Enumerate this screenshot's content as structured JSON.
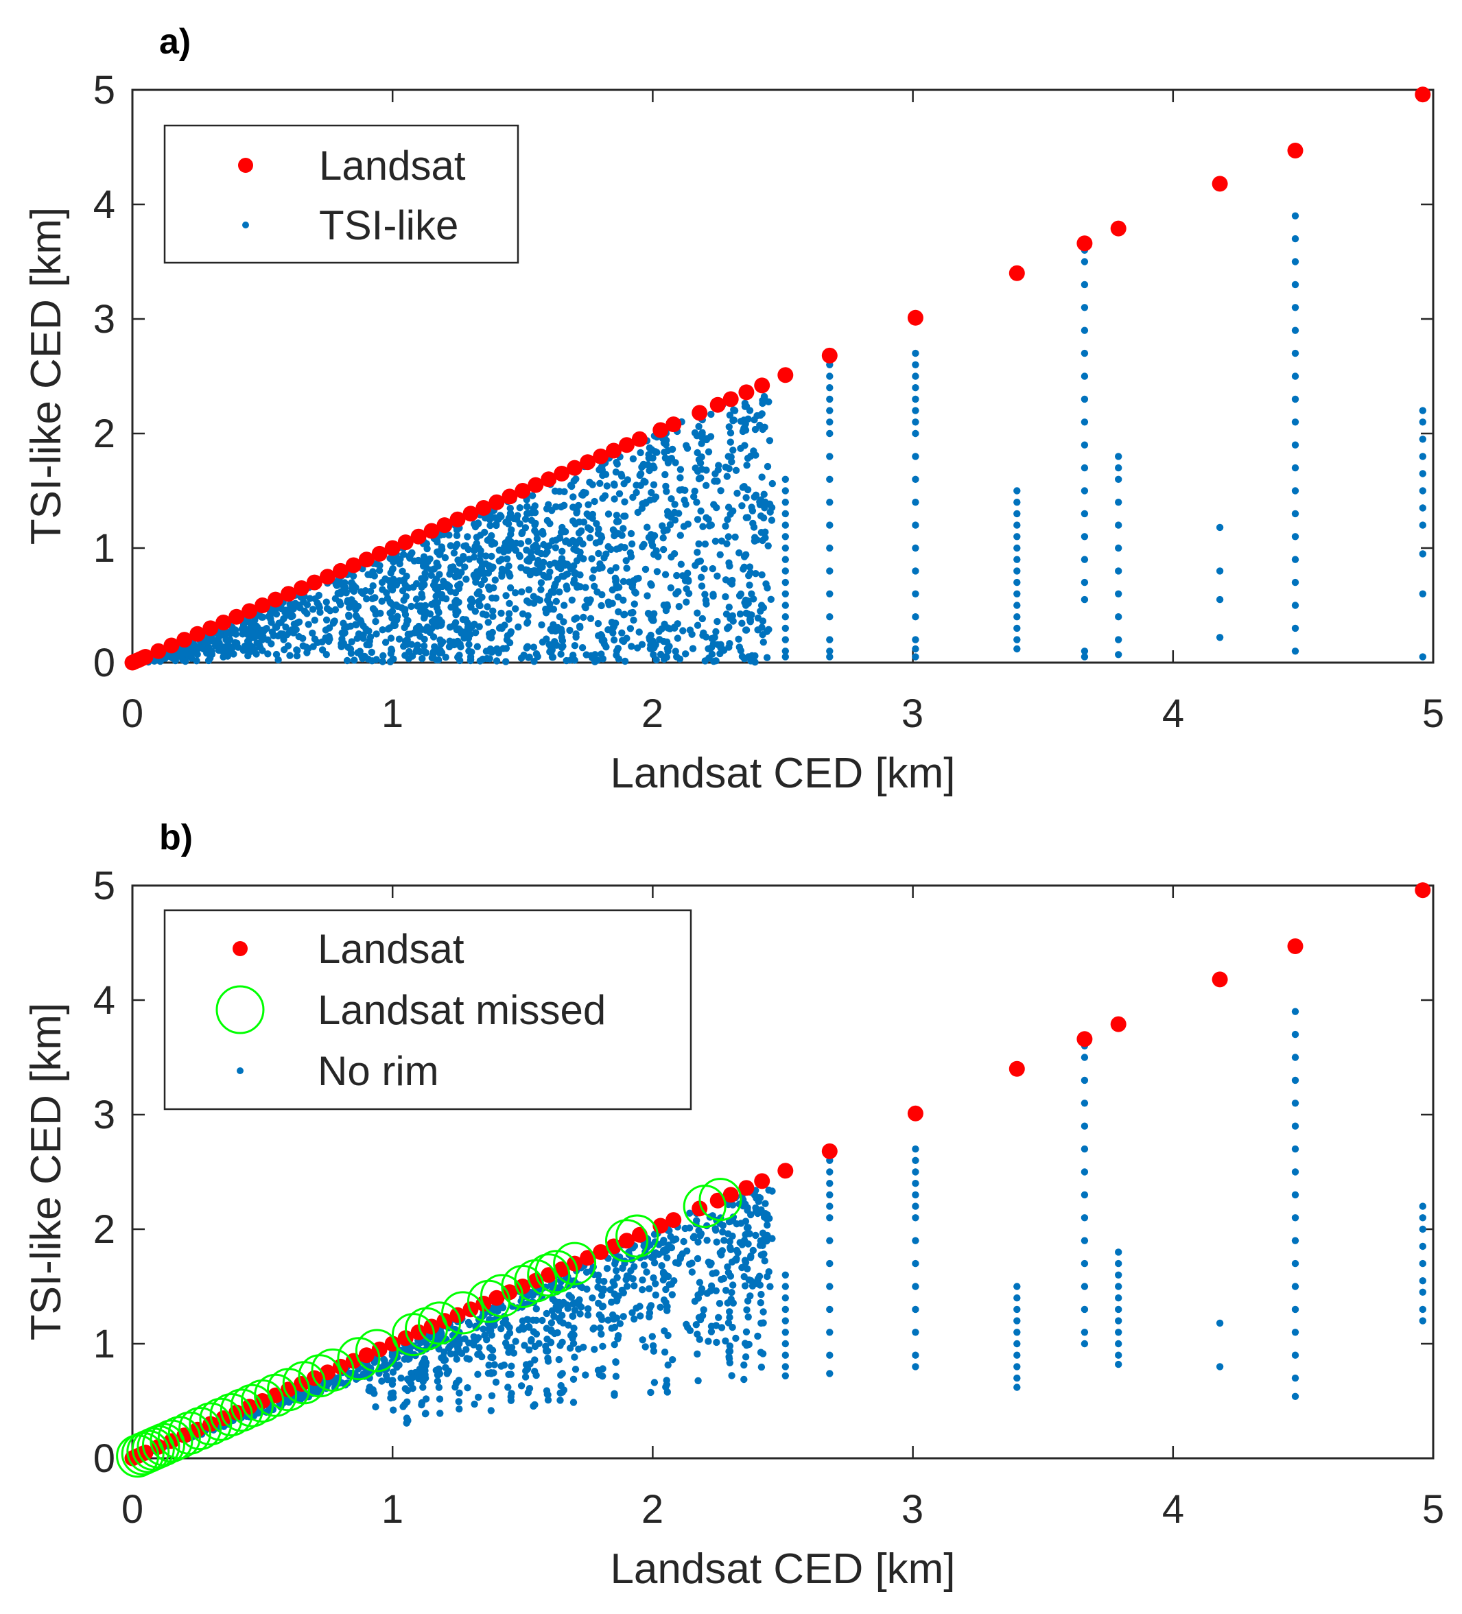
{
  "colors": {
    "landsat": "#ff0000",
    "tsi": "#0072bd",
    "missed": "#00ff00",
    "axis": "#262626"
  },
  "chart_data": [
    {
      "type": "scatter",
      "panel_label": "a)",
      "xlabel": "Landsat CED [km]",
      "ylabel": "TSI-like CED [km]",
      "xlim": [
        0,
        5
      ],
      "ylim": [
        0,
        5
      ],
      "xticks": [
        "0",
        "1",
        "2",
        "3",
        "4",
        "5"
      ],
      "yticks": [
        "0",
        "1",
        "2",
        "3",
        "4",
        "5"
      ],
      "grid": false,
      "legend_position": "top-left",
      "legend": [
        {
          "label": "Landsat",
          "marker": "filled-dot",
          "color": "#ff0000"
        },
        {
          "label": "TSI-like",
          "marker": "small-dot",
          "color": "#0072bd"
        }
      ],
      "series": [
        {
          "name": "Landsat",
          "x": [
            0.05,
            0.1,
            0.15,
            0.2,
            0.25,
            0.3,
            0.35,
            0.4,
            0.45,
            0.5,
            0.55,
            0.6,
            0.65,
            0.7,
            0.75,
            0.8,
            0.85,
            0.9,
            0.95,
            1.0,
            1.05,
            1.1,
            1.15,
            1.2,
            1.25,
            1.3,
            1.35,
            1.4,
            1.45,
            1.5,
            1.55,
            1.6,
            1.65,
            1.7,
            1.75,
            1.8,
            1.85,
            1.9,
            1.95,
            2.03,
            2.08,
            2.18,
            2.25,
            2.3,
            2.36,
            2.42,
            2.51,
            2.68,
            3.01,
            3.4,
            3.66,
            3.79,
            4.18,
            4.47,
            4.96
          ],
          "y": [
            0.05,
            0.1,
            0.15,
            0.2,
            0.25,
            0.3,
            0.35,
            0.4,
            0.45,
            0.5,
            0.55,
            0.6,
            0.65,
            0.7,
            0.75,
            0.8,
            0.85,
            0.9,
            0.95,
            1.0,
            1.05,
            1.1,
            1.15,
            1.2,
            1.25,
            1.3,
            1.35,
            1.4,
            1.45,
            1.5,
            1.55,
            1.6,
            1.65,
            1.7,
            1.75,
            1.8,
            1.85,
            1.9,
            1.95,
            2.03,
            2.08,
            2.18,
            2.25,
            2.3,
            2.36,
            2.42,
            2.51,
            2.68,
            3.01,
            3.4,
            3.66,
            3.79,
            4.18,
            4.47,
            4.96
          ]
        },
        {
          "name": "TSI-like",
          "columns": [
            {
              "x": 2.51,
              "y": [
                0.05,
                0.1,
                0.2,
                0.3,
                0.4,
                0.5,
                0.6,
                0.7,
                0.8,
                0.9,
                1.0,
                1.1,
                1.2,
                1.3,
                1.4,
                1.5,
                1.6
              ]
            },
            {
              "x": 2.68,
              "y": [
                0.05,
                0.1,
                0.2,
                0.4,
                0.6,
                0.8,
                1.0,
                1.2,
                1.4,
                1.6,
                1.8,
                2.0,
                2.1,
                2.2,
                2.3,
                2.4,
                2.5,
                2.6,
                2.65
              ]
            },
            {
              "x": 3.01,
              "y": [
                0.05,
                0.12,
                0.2,
                0.4,
                0.6,
                0.8,
                1.0,
                1.2,
                1.4,
                1.6,
                1.8,
                2.0,
                2.1,
                2.2,
                2.3,
                2.4,
                2.5,
                2.6,
                2.7
              ]
            },
            {
              "x": 3.4,
              "y": [
                0.12,
                0.2,
                0.3,
                0.4,
                0.5,
                0.6,
                0.7,
                0.8,
                0.9,
                1.0,
                1.1,
                1.2,
                1.3,
                1.4,
                1.5
              ]
            },
            {
              "x": 3.66,
              "y": [
                0.05,
                0.1,
                0.55,
                0.7,
                0.9,
                1.1,
                1.3,
                1.5,
                1.7,
                1.9,
                2.1,
                2.3,
                2.5,
                2.7,
                2.9,
                3.1,
                3.3,
                3.5,
                3.6,
                3.65
              ]
            },
            {
              "x": 3.79,
              "y": [
                0.07,
                0.2,
                0.4,
                0.6,
                0.8,
                1.0,
                1.2,
                1.4,
                1.6,
                1.7,
                1.8
              ]
            },
            {
              "x": 4.18,
              "y": [
                0.22,
                0.55,
                0.8,
                1.18
              ]
            },
            {
              "x": 4.47,
              "y": [
                0.1,
                0.3,
                0.5,
                0.7,
                0.9,
                1.1,
                1.3,
                1.5,
                1.7,
                1.9,
                2.1,
                2.3,
                2.5,
                2.7,
                2.9,
                3.1,
                3.3,
                3.5,
                3.7,
                3.9
              ]
            },
            {
              "x": 4.96,
              "y": [
                0.05,
                0.6,
                0.95,
                1.2,
                1.35,
                1.5,
                1.65,
                1.8,
                1.95,
                2.1,
                2.2
              ]
            }
          ]
        }
      ]
    },
    {
      "type": "scatter",
      "panel_label": "b)",
      "xlabel": "Landsat CED [km]",
      "ylabel": "TSI-like CED [km]",
      "xlim": [
        0,
        5
      ],
      "ylim": [
        0,
        5
      ],
      "xticks": [
        "0",
        "1",
        "2",
        "3",
        "4",
        "5"
      ],
      "yticks": [
        "0",
        "1",
        "2",
        "3",
        "4",
        "5"
      ],
      "grid": false,
      "legend_position": "top-left",
      "legend": [
        {
          "label": "Landsat",
          "marker": "filled-dot",
          "color": "#ff0000"
        },
        {
          "label": "Landsat missed",
          "marker": "open-circle",
          "color": "#00ff00"
        },
        {
          "label": "No rim",
          "marker": "small-dot",
          "color": "#0072bd"
        }
      ],
      "series": [
        {
          "name": "Landsat",
          "x": [
            0.05,
            0.1,
            0.15,
            0.2,
            0.25,
            0.3,
            0.35,
            0.4,
            0.45,
            0.5,
            0.55,
            0.6,
            0.65,
            0.7,
            0.75,
            0.8,
            0.85,
            0.9,
            0.95,
            1.0,
            1.05,
            1.1,
            1.15,
            1.2,
            1.25,
            1.3,
            1.35,
            1.4,
            1.45,
            1.5,
            1.55,
            1.6,
            1.65,
            1.7,
            1.75,
            1.8,
            1.85,
            1.9,
            1.95,
            2.03,
            2.08,
            2.18,
            2.25,
            2.3,
            2.36,
            2.42,
            2.51,
            2.68,
            3.01,
            3.4,
            3.66,
            3.79,
            4.18,
            4.47,
            4.96
          ],
          "y": [
            0.05,
            0.1,
            0.15,
            0.2,
            0.25,
            0.3,
            0.35,
            0.4,
            0.45,
            0.5,
            0.55,
            0.6,
            0.65,
            0.7,
            0.75,
            0.8,
            0.85,
            0.9,
            0.95,
            1.0,
            1.05,
            1.1,
            1.15,
            1.2,
            1.25,
            1.3,
            1.35,
            1.4,
            1.45,
            1.5,
            1.55,
            1.6,
            1.65,
            1.7,
            1.75,
            1.8,
            1.85,
            1.9,
            1.95,
            2.03,
            2.08,
            2.18,
            2.25,
            2.3,
            2.36,
            2.42,
            2.51,
            2.68,
            3.01,
            3.4,
            3.66,
            3.79,
            4.18,
            4.47,
            4.96
          ]
        },
        {
          "name": "Landsat missed",
          "x": [
            0.02,
            0.04,
            0.06,
            0.08,
            0.1,
            0.12,
            0.15,
            0.18,
            0.22,
            0.26,
            0.3,
            0.34,
            0.38,
            0.42,
            0.46,
            0.5,
            0.55,
            0.6,
            0.66,
            0.72,
            0.77,
            0.87,
            0.94,
            1.08,
            1.13,
            1.18,
            1.27,
            1.37,
            1.42,
            1.5,
            1.55,
            1.6,
            1.63,
            1.7,
            1.9,
            1.94,
            2.2,
            2.26
          ],
          "y": [
            0.02,
            0.04,
            0.06,
            0.08,
            0.1,
            0.12,
            0.15,
            0.18,
            0.22,
            0.26,
            0.3,
            0.34,
            0.38,
            0.42,
            0.46,
            0.5,
            0.55,
            0.6,
            0.66,
            0.72,
            0.77,
            0.87,
            0.94,
            1.08,
            1.13,
            1.18,
            1.27,
            1.37,
            1.42,
            1.5,
            1.55,
            1.6,
            1.63,
            1.7,
            1.9,
            1.94,
            2.2,
            2.26
          ]
        },
        {
          "name": "No rim",
          "columns": [
            {
              "x": 2.51,
              "y": [
                0.72,
                0.8,
                0.9,
                1.0,
                1.1,
                1.2,
                1.3,
                1.4,
                1.5,
                1.6
              ]
            },
            {
              "x": 2.68,
              "y": [
                0.74,
                0.9,
                1.1,
                1.3,
                1.5,
                1.7,
                1.9,
                2.1,
                2.2,
                2.3,
                2.4,
                2.5,
                2.6
              ]
            },
            {
              "x": 3.01,
              "y": [
                0.8,
                0.9,
                1.1,
                1.3,
                1.5,
                1.7,
                1.9,
                2.1,
                2.2,
                2.3,
                2.4,
                2.5,
                2.6,
                2.7
              ]
            },
            {
              "x": 3.4,
              "y": [
                0.62,
                0.7,
                0.8,
                0.9,
                1.0,
                1.1,
                1.2,
                1.3,
                1.4,
                1.5
              ]
            },
            {
              "x": 3.66,
              "y": [
                1.0,
                1.1,
                1.3,
                1.5,
                1.7,
                1.9,
                2.1,
                2.3,
                2.5,
                2.7,
                2.9,
                3.1,
                3.3,
                3.5,
                3.6,
                3.65
              ]
            },
            {
              "x": 3.79,
              "y": [
                0.82,
                0.9,
                1.0,
                1.1,
                1.2,
                1.3,
                1.4,
                1.5,
                1.6,
                1.7,
                1.8
              ]
            },
            {
              "x": 4.18,
              "y": [
                0.8,
                1.18
              ]
            },
            {
              "x": 4.47,
              "y": [
                0.54,
                0.7,
                0.9,
                1.1,
                1.3,
                1.5,
                1.7,
                1.9,
                2.1,
                2.3,
                2.5,
                2.7,
                2.9,
                3.1,
                3.3,
                3.5,
                3.7,
                3.9
              ]
            },
            {
              "x": 4.96,
              "y": [
                1.2,
                1.3,
                1.45,
                1.55,
                1.7,
                1.85,
                2.0,
                2.1,
                2.2
              ]
            }
          ]
        }
      ]
    }
  ]
}
